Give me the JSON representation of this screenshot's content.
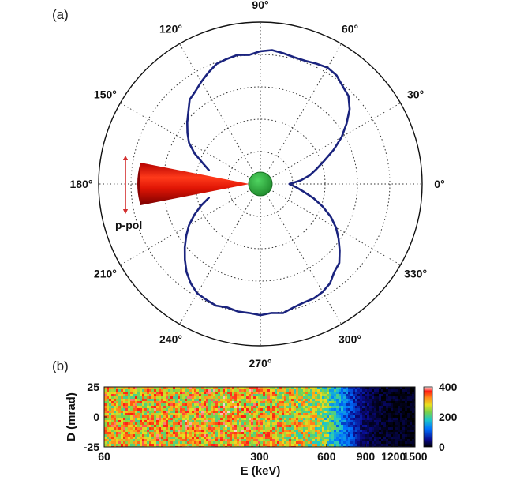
{
  "chart_data": [
    {
      "type": "polar-line",
      "panel_label": "(a)",
      "angle_labels": [
        "0°",
        "30°",
        "60°",
        "90°",
        "120°",
        "150°",
        "180°",
        "210°",
        "240°",
        "270°",
        "300°",
        "330°"
      ],
      "grid": true,
      "annotation": "p-pol",
      "colors": {
        "curve": "#1a237e",
        "cone": "#e3170a",
        "arrow": "#d32f2f",
        "target": "#2e9e3a"
      },
      "series": [
        {
          "theta_deg": [
            0,
            5,
            10,
            15,
            20,
            25,
            30,
            35,
            40,
            45,
            50,
            55,
            60,
            65,
            70,
            75,
            80,
            85,
            90,
            95,
            100,
            105,
            110,
            115,
            120,
            125,
            130,
            135,
            140,
            145,
            150,
            155,
            160,
            165
          ],
          "r": [
            0.18,
            0.25,
            0.31,
            0.36,
            0.42,
            0.5,
            0.58,
            0.65,
            0.72,
            0.77,
            0.79,
            0.82,
            0.83,
            0.82,
            0.81,
            0.81,
            0.82,
            0.83,
            0.82,
            0.8,
            0.81,
            0.8,
            0.79,
            0.76,
            0.73,
            0.7,
            0.68,
            0.63,
            0.59,
            0.55,
            0.51,
            0.45,
            0.38,
            0.33
          ]
        },
        {
          "theta_deg": [
            195,
            200,
            205,
            210,
            215,
            220,
            225,
            230,
            235,
            240,
            245,
            250,
            255,
            260,
            265,
            270,
            275,
            280,
            285,
            290,
            295,
            300,
            305,
            310,
            315,
            320,
            325,
            330,
            335,
            340,
            345,
            350,
            355,
            360
          ],
          "r": [
            0.33,
            0.39,
            0.45,
            0.51,
            0.56,
            0.61,
            0.66,
            0.71,
            0.75,
            0.78,
            0.79,
            0.8,
            0.79,
            0.8,
            0.8,
            0.81,
            0.8,
            0.81,
            0.79,
            0.78,
            0.78,
            0.77,
            0.75,
            0.71,
            0.69,
            0.64,
            0.59,
            0.54,
            0.48,
            0.41,
            0.34,
            0.27,
            0.22,
            0.18
          ]
        }
      ]
    },
    {
      "type": "heatmap",
      "panel_label": "(b)",
      "xlabel": "E (keV)",
      "ylabel": "D (mrad)",
      "xticks": [
        "60",
        "300",
        "600",
        "900",
        "1200",
        "1500"
      ],
      "xtick_values": [
        60,
        300,
        600,
        900,
        1200,
        1500
      ],
      "yticks": [
        "25",
        "0",
        "-25"
      ],
      "ytick_values": [
        25,
        0,
        -25
      ],
      "xlim": [
        60,
        1500
      ],
      "ylim": [
        -25,
        25
      ],
      "colorbar_ticks": [
        "400",
        "200",
        "0"
      ],
      "colorbar_values": [
        400,
        200,
        0
      ],
      "clim": [
        0,
        400
      ],
      "intensity_profile": {
        "E_keV": [
          60,
          150,
          250,
          350,
          450,
          550,
          620,
          680,
          740,
          800,
          860,
          920,
          1000,
          1100,
          1200,
          1300,
          1400,
          1500
        ],
        "counts": [
          290,
          300,
          300,
          290,
          270,
          250,
          200,
          150,
          110,
          70,
          45,
          30,
          20,
          15,
          12,
          10,
          9,
          8
        ]
      }
    }
  ]
}
